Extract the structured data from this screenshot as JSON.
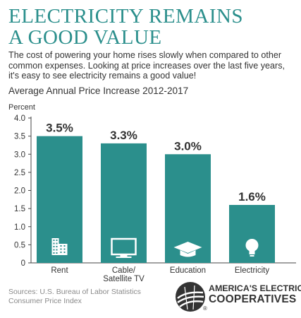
{
  "headline": {
    "line1": "ELECTRICITY REMAINS",
    "line2": "A GOOD VALUE"
  },
  "intro": "The cost of powering your home rises slowly when compared to other common expenses. Looking at price increases over the last five years, it's easy to see electricity remains a good value!",
  "colors": {
    "accent": "#2b8f8c",
    "text": "#333333",
    "muted": "#8a8a8a"
  },
  "chart_data": {
    "type": "bar",
    "title": "Average Annual Price Increase 2012-2017",
    "ylabel": "Percent",
    "xlabel": "",
    "categories": [
      "Rent",
      "Cable/ Satellite TV",
      "Education",
      "Electricity"
    ],
    "category_lines": [
      [
        "Rent"
      ],
      [
        "Cable/",
        "Satellite TV"
      ],
      [
        "Education"
      ],
      [
        "Electricity"
      ]
    ],
    "values": [
      3.5,
      3.3,
      3.0,
      1.6
    ],
    "data_labels": [
      "3.5%",
      "3.3%",
      "3.0%",
      "1.6%"
    ],
    "ylim": [
      0,
      4.0
    ],
    "yticks": [
      "0",
      "0.5",
      "1.0",
      "1.5",
      "2.0",
      "2.5",
      "3.0",
      "3.5",
      "4.0"
    ],
    "grid": false,
    "icons": [
      "building-icon",
      "tv-icon",
      "graduation-cap-icon",
      "lightbulb-icon"
    ]
  },
  "sources": {
    "line1": "Sources: U.S. Bureau of Labor Statistics",
    "line2": "Consumer Price Index"
  },
  "logo": {
    "line1": "AMERICA'S ELECTRIC",
    "line2": "COOPERATIVES",
    "mark": "®"
  }
}
